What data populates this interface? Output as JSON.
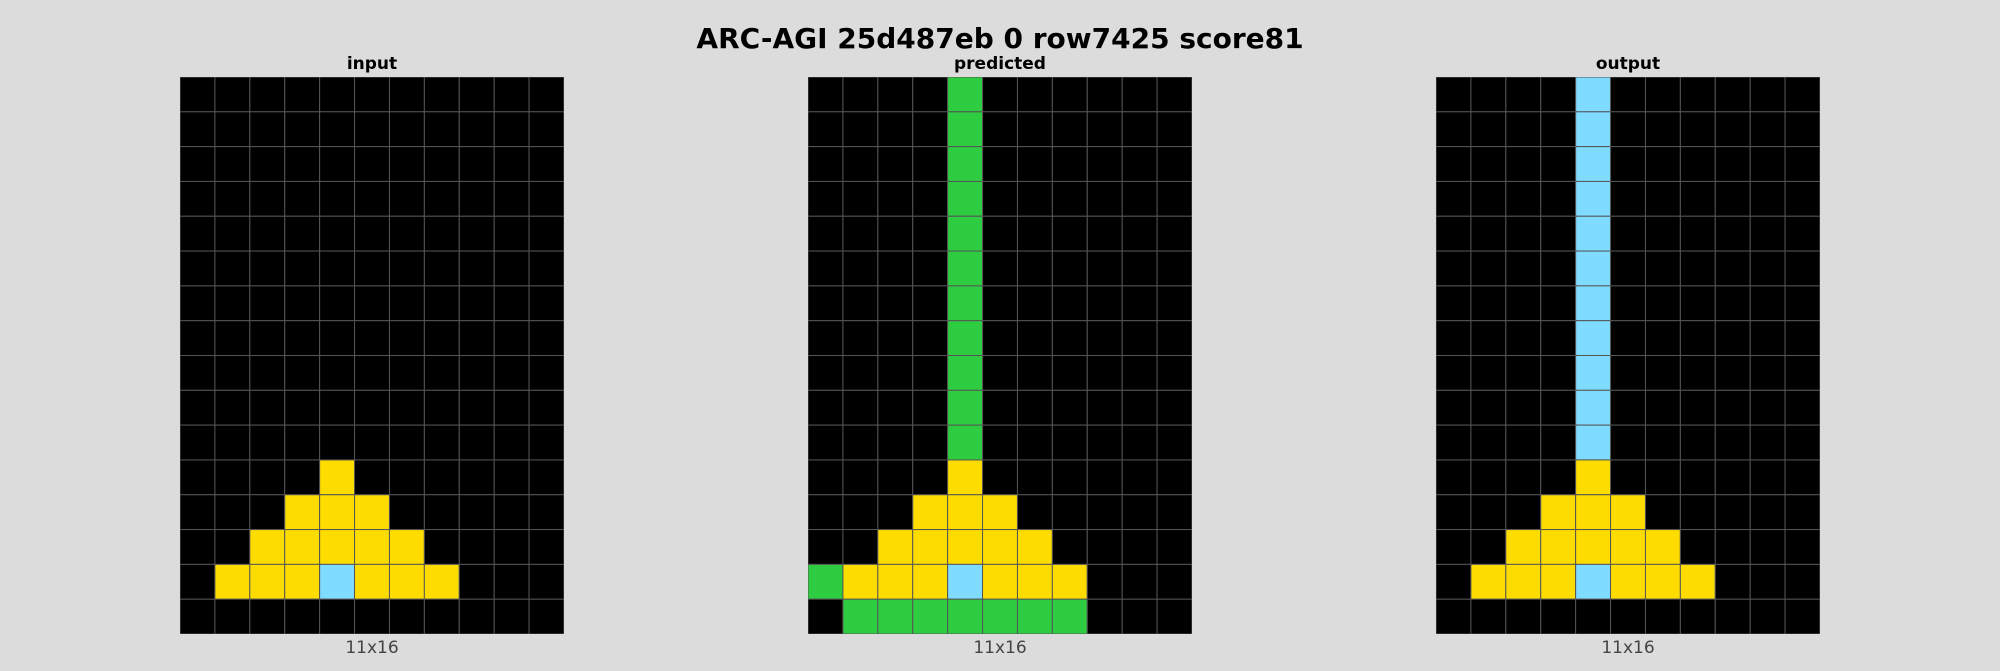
{
  "title": "ARC-AGI 25d487eb 0 row7425 score81",
  "colors": {
    "0": "#000000",
    "2": "#2ecc40",
    "4": "#ffdc00",
    "8": "#7fdbff",
    "gridline": "#555555"
  },
  "panels": [
    {
      "label": "input",
      "size": "11x16",
      "grid": [
        [
          0,
          0,
          0,
          0,
          0,
          0,
          0,
          0,
          0,
          0,
          0
        ],
        [
          0,
          0,
          0,
          0,
          0,
          0,
          0,
          0,
          0,
          0,
          0
        ],
        [
          0,
          0,
          0,
          0,
          0,
          0,
          0,
          0,
          0,
          0,
          0
        ],
        [
          0,
          0,
          0,
          0,
          0,
          0,
          0,
          0,
          0,
          0,
          0
        ],
        [
          0,
          0,
          0,
          0,
          0,
          0,
          0,
          0,
          0,
          0,
          0
        ],
        [
          0,
          0,
          0,
          0,
          0,
          0,
          0,
          0,
          0,
          0,
          0
        ],
        [
          0,
          0,
          0,
          0,
          0,
          0,
          0,
          0,
          0,
          0,
          0
        ],
        [
          0,
          0,
          0,
          0,
          0,
          0,
          0,
          0,
          0,
          0,
          0
        ],
        [
          0,
          0,
          0,
          0,
          0,
          0,
          0,
          0,
          0,
          0,
          0
        ],
        [
          0,
          0,
          0,
          0,
          0,
          0,
          0,
          0,
          0,
          0,
          0
        ],
        [
          0,
          0,
          0,
          0,
          0,
          0,
          0,
          0,
          0,
          0,
          0
        ],
        [
          0,
          0,
          0,
          0,
          4,
          0,
          0,
          0,
          0,
          0,
          0
        ],
        [
          0,
          0,
          0,
          4,
          4,
          4,
          0,
          0,
          0,
          0,
          0
        ],
        [
          0,
          0,
          4,
          4,
          4,
          4,
          4,
          0,
          0,
          0,
          0
        ],
        [
          0,
          4,
          4,
          4,
          8,
          4,
          4,
          4,
          0,
          0,
          0
        ],
        [
          0,
          0,
          0,
          0,
          0,
          0,
          0,
          0,
          0,
          0,
          0
        ]
      ]
    },
    {
      "label": "predicted",
      "size": "11x16",
      "grid": [
        [
          0,
          0,
          0,
          0,
          2,
          0,
          0,
          0,
          0,
          0,
          0
        ],
        [
          0,
          0,
          0,
          0,
          2,
          0,
          0,
          0,
          0,
          0,
          0
        ],
        [
          0,
          0,
          0,
          0,
          2,
          0,
          0,
          0,
          0,
          0,
          0
        ],
        [
          0,
          0,
          0,
          0,
          2,
          0,
          0,
          0,
          0,
          0,
          0
        ],
        [
          0,
          0,
          0,
          0,
          2,
          0,
          0,
          0,
          0,
          0,
          0
        ],
        [
          0,
          0,
          0,
          0,
          2,
          0,
          0,
          0,
          0,
          0,
          0
        ],
        [
          0,
          0,
          0,
          0,
          2,
          0,
          0,
          0,
          0,
          0,
          0
        ],
        [
          0,
          0,
          0,
          0,
          2,
          0,
          0,
          0,
          0,
          0,
          0
        ],
        [
          0,
          0,
          0,
          0,
          2,
          0,
          0,
          0,
          0,
          0,
          0
        ],
        [
          0,
          0,
          0,
          0,
          2,
          0,
          0,
          0,
          0,
          0,
          0
        ],
        [
          0,
          0,
          0,
          0,
          2,
          0,
          0,
          0,
          0,
          0,
          0
        ],
        [
          0,
          0,
          0,
          0,
          4,
          0,
          0,
          0,
          0,
          0,
          0
        ],
        [
          0,
          0,
          0,
          4,
          4,
          4,
          0,
          0,
          0,
          0,
          0
        ],
        [
          0,
          0,
          4,
          4,
          4,
          4,
          4,
          0,
          0,
          0,
          0
        ],
        [
          2,
          4,
          4,
          4,
          8,
          4,
          4,
          4,
          0,
          0,
          0
        ],
        [
          0,
          2,
          2,
          2,
          2,
          2,
          2,
          2,
          0,
          0,
          0
        ]
      ]
    },
    {
      "label": "output",
      "size": "11x16",
      "grid": [
        [
          0,
          0,
          0,
          0,
          8,
          0,
          0,
          0,
          0,
          0,
          0
        ],
        [
          0,
          0,
          0,
          0,
          8,
          0,
          0,
          0,
          0,
          0,
          0
        ],
        [
          0,
          0,
          0,
          0,
          8,
          0,
          0,
          0,
          0,
          0,
          0
        ],
        [
          0,
          0,
          0,
          0,
          8,
          0,
          0,
          0,
          0,
          0,
          0
        ],
        [
          0,
          0,
          0,
          0,
          8,
          0,
          0,
          0,
          0,
          0,
          0
        ],
        [
          0,
          0,
          0,
          0,
          8,
          0,
          0,
          0,
          0,
          0,
          0
        ],
        [
          0,
          0,
          0,
          0,
          8,
          0,
          0,
          0,
          0,
          0,
          0
        ],
        [
          0,
          0,
          0,
          0,
          8,
          0,
          0,
          0,
          0,
          0,
          0
        ],
        [
          0,
          0,
          0,
          0,
          8,
          0,
          0,
          0,
          0,
          0,
          0
        ],
        [
          0,
          0,
          0,
          0,
          8,
          0,
          0,
          0,
          0,
          0,
          0
        ],
        [
          0,
          0,
          0,
          0,
          8,
          0,
          0,
          0,
          0,
          0,
          0
        ],
        [
          0,
          0,
          0,
          0,
          4,
          0,
          0,
          0,
          0,
          0,
          0
        ],
        [
          0,
          0,
          0,
          4,
          4,
          4,
          0,
          0,
          0,
          0,
          0
        ],
        [
          0,
          0,
          4,
          4,
          4,
          4,
          4,
          0,
          0,
          0,
          0
        ],
        [
          0,
          4,
          4,
          4,
          8,
          4,
          4,
          4,
          0,
          0,
          0
        ],
        [
          0,
          0,
          0,
          0,
          0,
          0,
          0,
          0,
          0,
          0,
          0
        ]
      ]
    }
  ]
}
